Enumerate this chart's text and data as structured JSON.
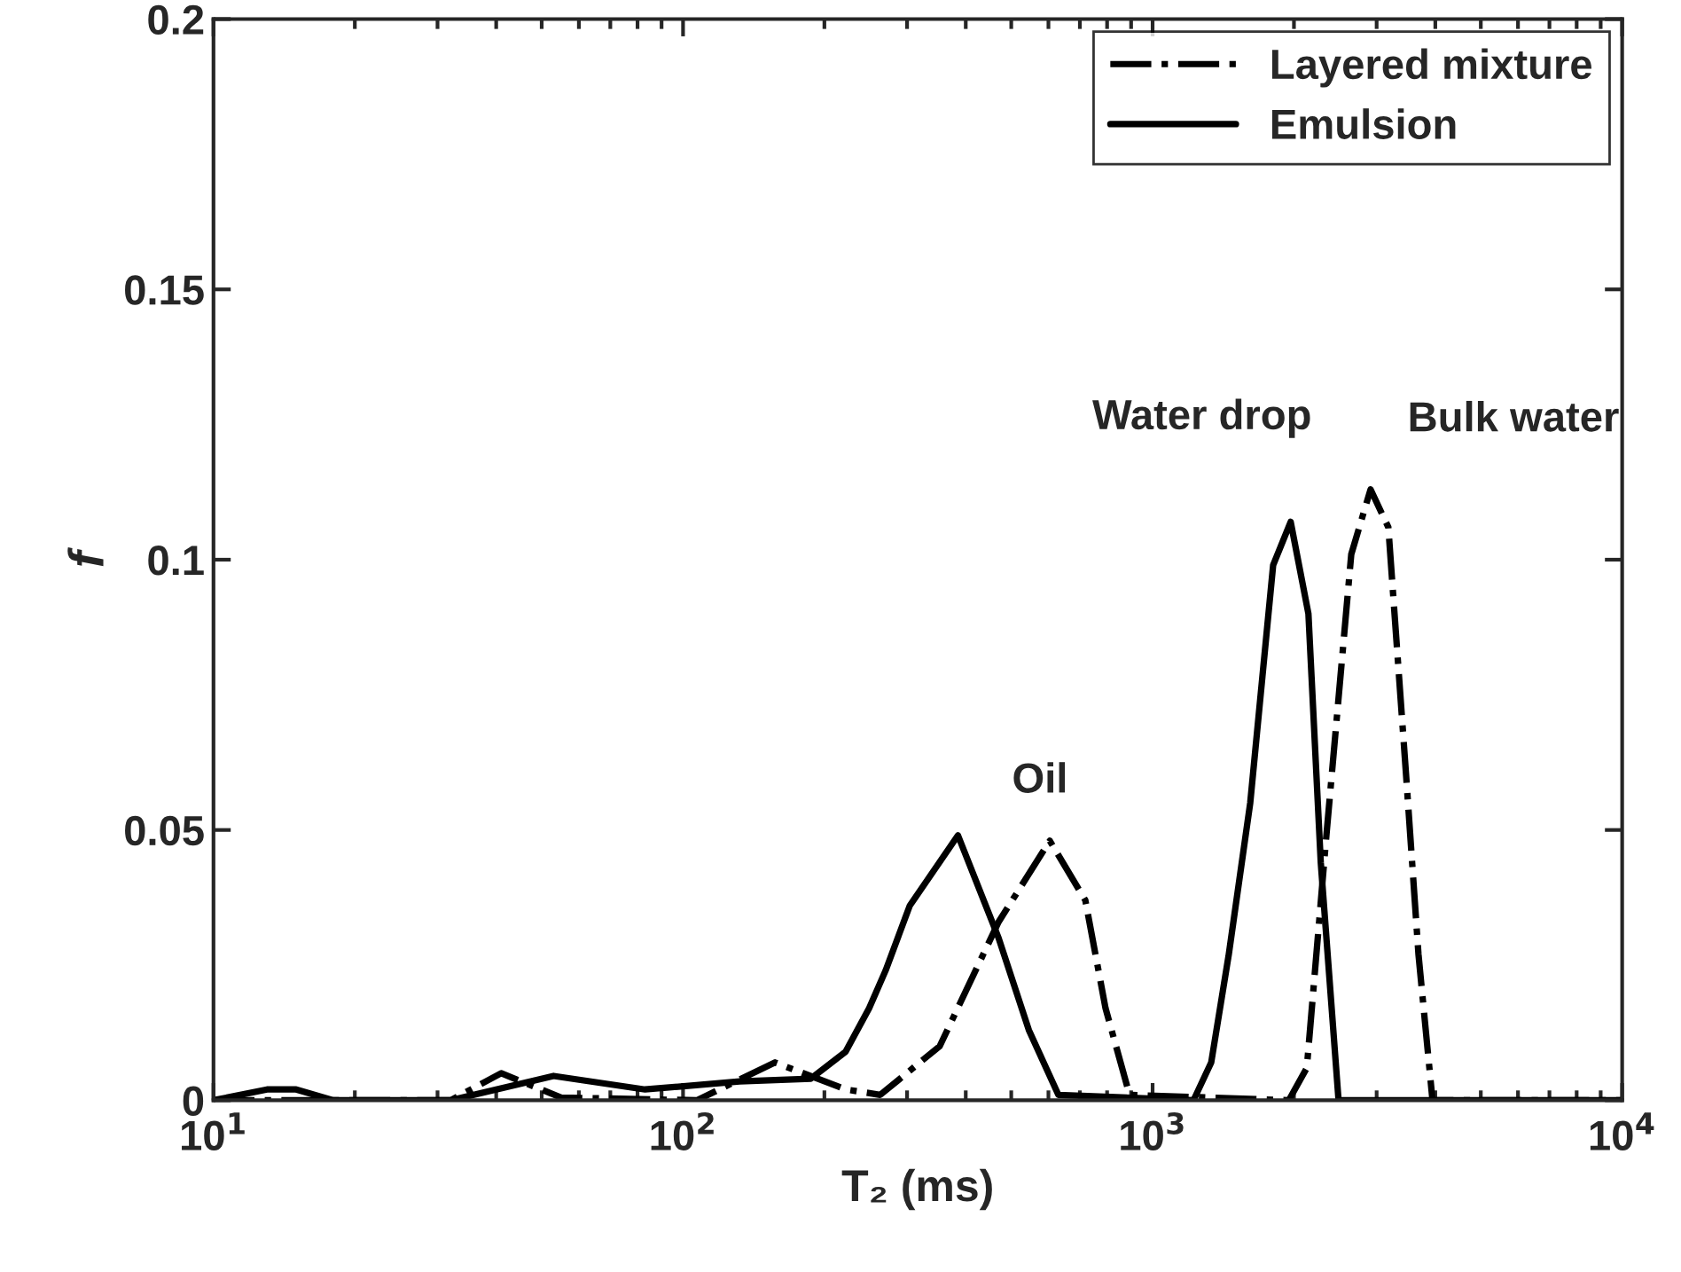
{
  "chart_data": {
    "type": "line",
    "xlabel": "T₂ (ms)",
    "ylabel": "f",
    "log": "x",
    "xlim": [
      10,
      10000
    ],
    "xticks": [
      {
        "value": 10,
        "label": "10$^{1}$"
      },
      {
        "value": 100,
        "label": "10$^{2}$"
      },
      {
        "value": 1000,
        "label": "10$^{3}$"
      },
      {
        "value": 10000,
        "label": "10$^{4}$"
      }
    ],
    "ylim": [
      0,
      0.2
    ],
    "yticks": [
      0,
      0.05,
      0.1,
      0.15,
      0.2
    ],
    "grid": false,
    "legend": "top right",
    "marker": "none",
    "series": [
      {
        "name": "Layered mixture",
        "color": "#000000",
        "line_style": "dashdot",
        "x": [
          10,
          32,
          41,
          55,
          107,
          157,
          222,
          263,
          352,
          470,
          604,
          719,
          794,
          893,
          1950,
          2130,
          2345,
          2649,
          2912,
          3177,
          3467,
          3683,
          3945,
          10000
        ],
        "values": [
          0,
          0,
          0.005,
          0.0005,
          0,
          0.007,
          0.002,
          0.001,
          0.01,
          0.033,
          0.048,
          0.037,
          0.017,
          0.001,
          0,
          0.006,
          0.049,
          0.101,
          0.113,
          0.106,
          0.06,
          0.027,
          0,
          0
        ]
      },
      {
        "name": "Emulsion",
        "color": "#000000",
        "line_style": "solid",
        "x": [
          10,
          13,
          15,
          18,
          32,
          53,
          83,
          132,
          187,
          222,
          249,
          270,
          304,
          385,
          470,
          545,
          630,
          1222,
          1333,
          1453,
          1614,
          1806,
          1968,
          2147,
          2281,
          2489,
          10000
        ],
        "values": [
          0,
          0.002,
          0.002,
          0,
          0,
          0.0045,
          0.002,
          0.0035,
          0.004,
          0.009,
          0.017,
          0.024,
          0.036,
          0.049,
          0.03,
          0.013,
          0.001,
          0,
          0.007,
          0.027,
          0.055,
          0.099,
          0.107,
          0.09,
          0.044,
          0,
          0
        ]
      }
    ],
    "annotations": [
      {
        "text": "Oil",
        "x": 604,
        "y": 0.048
      },
      {
        "text": "Water drop",
        "x": 1968,
        "y": 0.107
      },
      {
        "text": "Bulk water",
        "x": 2912,
        "y": 0.113
      }
    ]
  }
}
